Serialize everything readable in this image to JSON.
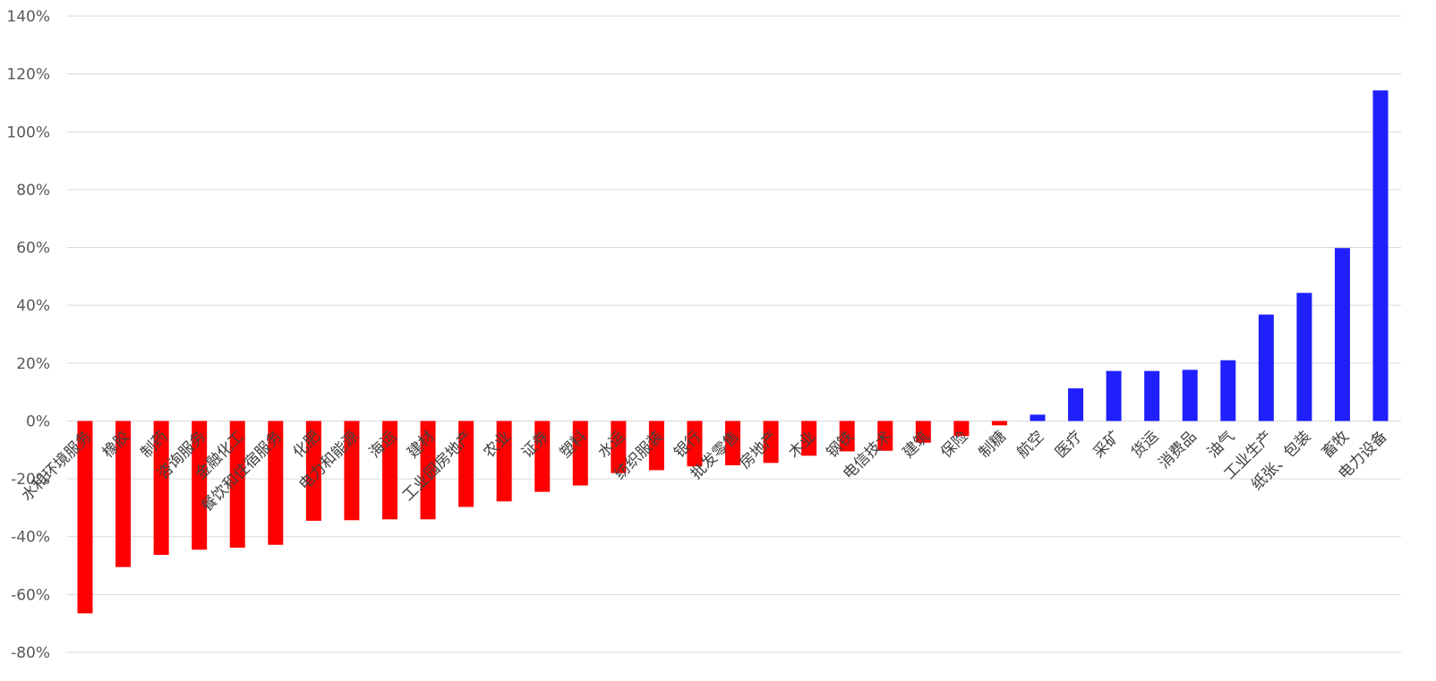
{
  "chart_data": {
    "type": "bar",
    "title": "",
    "xlabel": "",
    "ylabel": "",
    "ylim": [
      -80,
      140
    ],
    "yticks": [
      140,
      120,
      100,
      80,
      60,
      40,
      20,
      0,
      -20,
      -40,
      -60,
      -80
    ],
    "ytick_format": "percent",
    "grid": true,
    "legend": "none",
    "colors": {
      "negative": "#ff0000",
      "positive": "#2020ff"
    },
    "categories": [
      "水和环境服务",
      "橡胶",
      "制药",
      "咨询服务",
      "金融化工",
      "餐饮和住宿服务",
      "化肥",
      "电力和能源",
      "海运",
      "建材",
      "工业园房地产",
      "农业",
      "证券",
      "塑料",
      "水运",
      "纺织服装",
      "银行",
      "批发零售",
      "房地产",
      "木业",
      "钢铁",
      "电信技术",
      "建筑",
      "保险",
      "制糖",
      "航空",
      "医疗",
      "采矿",
      "货运",
      "消费品",
      "油气",
      "工业生产",
      "纸张、包装",
      "畜牧",
      "电力设备"
    ],
    "values": [
      -66.5,
      -50.5,
      -46.3,
      -44.5,
      -43.8,
      -42.8,
      -34.5,
      -34.3,
      -34.0,
      -34.0,
      -29.7,
      -27.8,
      -24.5,
      -22.3,
      -18.0,
      -17.0,
      -15.7,
      -15.3,
      -14.5,
      -12.0,
      -10.5,
      -10.3,
      -7.5,
      -5.2,
      -1.5,
      2.2,
      11.3,
      17.3,
      17.3,
      17.7,
      21.0,
      36.8,
      44.3,
      59.8,
      114.3
    ]
  }
}
